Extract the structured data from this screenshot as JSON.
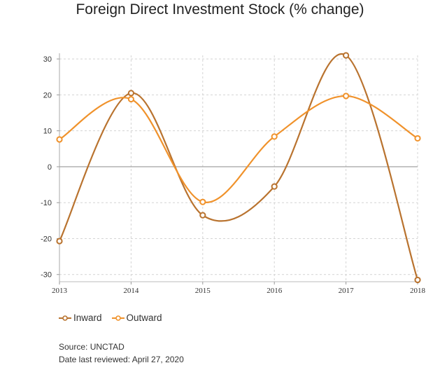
{
  "title": "Foreign Direct Investment Stock (% change)",
  "chart_data": {
    "type": "line",
    "title": "Foreign Direct Investment Stock (% change)",
    "categories": [
      "2013",
      "2014",
      "2015",
      "2016",
      "2017",
      "2018"
    ],
    "ylim": [
      -32,
      31
    ],
    "yticks": [
      30,
      20,
      10,
      0,
      -10,
      -20,
      -30
    ],
    "grid": true,
    "legend_position": "bottom-left",
    "series": [
      {
        "name": "Inward",
        "color": "#b9732f",
        "values": [
          -20.7,
          20.5,
          -13.5,
          -5.5,
          31,
          -31.5
        ]
      },
      {
        "name": "Outward",
        "color": "#f0922b",
        "values": [
          7.6,
          18.8,
          -9.8,
          8.4,
          19.7,
          7.9
        ]
      }
    ]
  },
  "source": {
    "source_line": "Source: UNCTAD",
    "date_line": "Date last reviewed: April 27, 2020"
  }
}
